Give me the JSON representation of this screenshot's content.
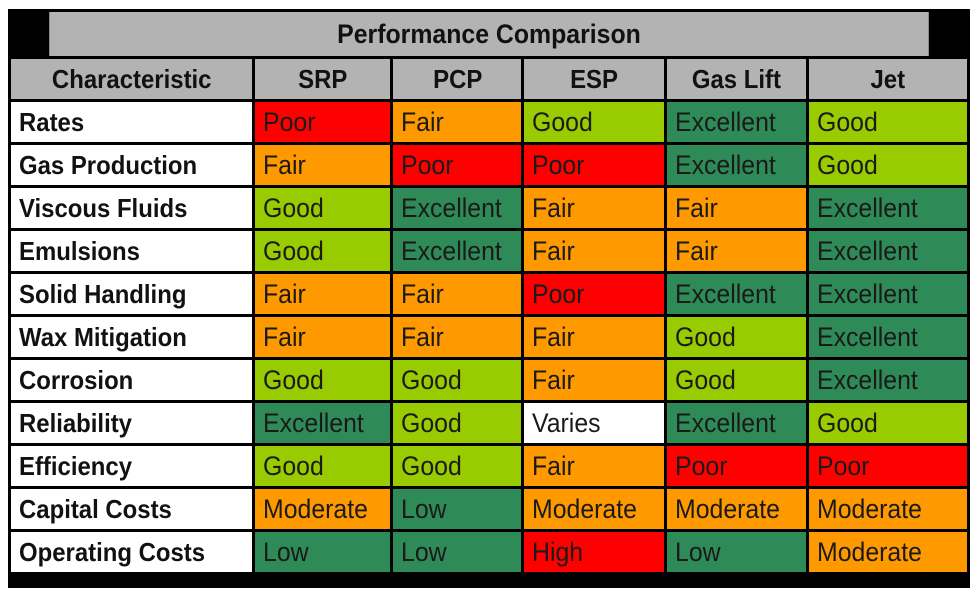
{
  "title": "Performance Comparison",
  "columns": [
    "Characteristic",
    "SRP",
    "PCP",
    "ESP",
    "Gas Lift",
    "Jet"
  ],
  "rows": [
    {
      "label": "Rates",
      "values": [
        "Poor",
        "Fair",
        "Good",
        "Excellent",
        "Good"
      ]
    },
    {
      "label": "Gas Production",
      "values": [
        "Fair",
        "Poor",
        "Poor",
        "Excellent",
        "Good"
      ]
    },
    {
      "label": "Viscous Fluids",
      "values": [
        "Good",
        "Excellent",
        "Fair",
        "Fair",
        "Excellent"
      ]
    },
    {
      "label": "Emulsions",
      "values": [
        "Good",
        "Excellent",
        "Fair",
        "Fair",
        "Excellent"
      ]
    },
    {
      "label": "Solid Handling",
      "values": [
        "Fair",
        "Fair",
        "Poor",
        "Excellent",
        "Excellent"
      ]
    },
    {
      "label": "Wax Mitigation",
      "values": [
        "Fair",
        "Fair",
        "Fair",
        "Good",
        "Excellent"
      ]
    },
    {
      "label": "Corrosion",
      "values": [
        "Good",
        "Good",
        "Fair",
        "Good",
        "Excellent"
      ]
    },
    {
      "label": "Reliability",
      "values": [
        "Excellent",
        "Good",
        "Varies",
        "Excellent",
        "Good"
      ]
    },
    {
      "label": "Efficiency",
      "values": [
        "Good",
        "Good",
        "Fair",
        "Poor",
        "Poor"
      ]
    },
    {
      "label": "Capital Costs",
      "values": [
        "Moderate",
        "Low",
        "Moderate",
        "Moderate",
        "Moderate"
      ]
    },
    {
      "label": "Operating Costs",
      "values": [
        "Low",
        "Low",
        "High",
        "Low",
        "Moderate"
      ]
    }
  ],
  "colors": {
    "Excellent": "#2e8b57",
    "Good": "#99cc00",
    "Fair": "#ff9900",
    "Poor": "#ff0000",
    "Varies": "#ffffff",
    "Moderate": "#ff9900",
    "Low": "#2e8b57",
    "High": "#ff0000",
    "header": "#b3b3b3"
  }
}
